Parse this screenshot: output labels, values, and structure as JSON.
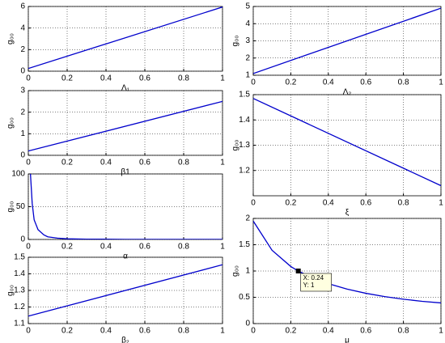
{
  "chart_data": [
    {
      "type": "line",
      "xlabel": "Λ₁",
      "ylabel": "g₀₀",
      "x": [
        0,
        1
      ],
      "values": [
        0.25,
        5.95
      ],
      "color": "#0000cc",
      "xlim": [
        0,
        1
      ],
      "ylim": [
        0,
        6
      ],
      "xticks": [
        0,
        0.2,
        0.4,
        0.6,
        0.8,
        1
      ],
      "yticks": [
        0,
        2,
        4,
        6
      ],
      "grid": true
    },
    {
      "type": "line",
      "xlabel": "β1",
      "ylabel": "g₀₀",
      "x": [
        0,
        1
      ],
      "values": [
        0.2,
        2.5
      ],
      "color": "#0000cc",
      "xlim": [
        0,
        1
      ],
      "ylim": [
        0,
        3
      ],
      "xticks": [
        0,
        0.2,
        0.4,
        0.6,
        0.8,
        1
      ],
      "yticks": [
        0,
        1,
        2,
        3
      ],
      "grid": true
    },
    {
      "type": "line",
      "xlabel": "α",
      "ylabel": "g₀₀",
      "x": [
        0.01,
        0.02,
        0.03,
        0.05,
        0.08,
        0.1,
        0.15,
        0.2,
        0.3,
        0.5,
        0.7,
        1
      ],
      "values": [
        105,
        55,
        30,
        15,
        7,
        4,
        2,
        1,
        0.5,
        0.2,
        0.1,
        0.05
      ],
      "color": "#0000cc",
      "xlim": [
        0,
        1
      ],
      "ylim": [
        0,
        100
      ],
      "xticks": [
        0,
        0.2,
        0.4,
        0.6,
        0.8,
        1
      ],
      "yticks": [
        0,
        50,
        100
      ],
      "grid": true
    },
    {
      "type": "line",
      "xlabel": "β₂",
      "ylabel": "g₀₀",
      "x": [
        0,
        1
      ],
      "values": [
        1.145,
        1.455
      ],
      "color": "#0000cc",
      "xlim": [
        0,
        1
      ],
      "ylim": [
        1.1,
        1.5
      ],
      "xticks": [
        0,
        0.2,
        0.4,
        0.6,
        0.8,
        1
      ],
      "yticks": [
        1.1,
        1.2,
        1.3,
        1.4,
        1.5
      ],
      "grid": true
    },
    {
      "type": "line",
      "xlabel": "Λ₂",
      "ylabel": "g₀₀",
      "x": [
        0,
        1
      ],
      "values": [
        1.1,
        4.9
      ],
      "color": "#0000cc",
      "xlim": [
        0,
        1
      ],
      "ylim": [
        1,
        5
      ],
      "xticks": [
        0,
        0.2,
        0.4,
        0.6,
        0.8,
        1
      ],
      "yticks": [
        1,
        2,
        3,
        4,
        5
      ],
      "grid": true
    },
    {
      "type": "line",
      "xlabel": "ξ",
      "ylabel": "g₀₀",
      "x": [
        0,
        1
      ],
      "values": [
        1.485,
        1.14
      ],
      "color": "#0000cc",
      "xlim": [
        0,
        1
      ],
      "ylim": [
        1.1,
        1.5
      ],
      "xticks": [
        0,
        0.2,
        0.4,
        0.6,
        0.8,
        1
      ],
      "yticks": [
        1.2,
        1.3,
        1.4,
        1.5
      ],
      "grid": true
    },
    {
      "type": "line",
      "xlabel": "μ",
      "ylabel": "g₀₀",
      "x": [
        0,
        0.1,
        0.2,
        0.24,
        0.3,
        0.4,
        0.5,
        0.6,
        0.7,
        0.8,
        0.9,
        1
      ],
      "values": [
        1.95,
        1.395,
        1.086,
        1.0,
        0.893,
        0.759,
        0.655,
        0.576,
        0.514,
        0.464,
        0.423,
        0.393
      ],
      "color": "#0000cc",
      "xlim": [
        0,
        1
      ],
      "ylim": [
        0,
        2
      ],
      "xticks": [
        0,
        0.2,
        0.4,
        0.6,
        0.8,
        1
      ],
      "yticks": [
        0,
        0.5,
        1,
        1.5,
        2
      ],
      "grid": true,
      "datatip": {
        "x": 0.24,
        "y": 1,
        "labels": [
          "X: 0.24",
          "Y: 1"
        ]
      }
    }
  ]
}
